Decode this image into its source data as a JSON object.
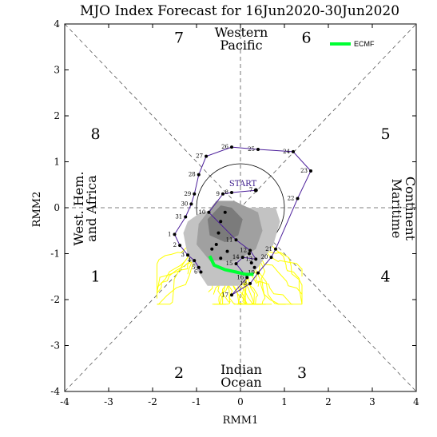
{
  "chart_data": {
    "type": "scatter",
    "title": "MJO Index Forecast for 16Jun2020-30Jun2020",
    "xlabel": "RMM1",
    "ylabel": "RMM2",
    "xlim": [
      -4,
      4
    ],
    "ylim": [
      -4,
      4
    ],
    "xticks": [
      "-4",
      "-3",
      "-2",
      "-1",
      "0",
      "1",
      "2",
      "3",
      "4"
    ],
    "yticks": [
      "-4",
      "-3",
      "-2",
      "-1",
      "0",
      "1",
      "2",
      "3",
      "4"
    ],
    "phases": [
      {
        "label": "1",
        "x": -3.3,
        "y": -1.5
      },
      {
        "label": "2",
        "x": -1.4,
        "y": -3.6
      },
      {
        "label": "3",
        "x": 1.4,
        "y": -3.6
      },
      {
        "label": "4",
        "x": 3.3,
        "y": -1.5
      },
      {
        "label": "5",
        "x": 3.3,
        "y": 1.6
      },
      {
        "label": "6",
        "x": 1.5,
        "y": 3.7
      },
      {
        "label": "7",
        "x": -1.4,
        "y": 3.7
      },
      {
        "label": "8",
        "x": -3.3,
        "y": 1.6
      }
    ],
    "regions": {
      "west_pacific": [
        "Western",
        "Pacific"
      ],
      "indian_ocean": [
        "Indian",
        "Ocean"
      ],
      "maritime": [
        "Maritime",
        "Continent"
      ],
      "west_hem": [
        "West. Hem.",
        "and Africa"
      ]
    },
    "legend": {
      "label": "ECMF",
      "color": "#00ff33",
      "position": "top-right"
    },
    "start_label": "START",
    "start_point": {
      "x": 0.35,
      "y": 0.38
    },
    "observed": {
      "color": "#4b1e9a",
      "points": [
        {
          "day": "7",
          "x": 0.35,
          "y": 0.38
        },
        {
          "day": "8",
          "x": -0.2,
          "y": 0.33
        },
        {
          "day": "9",
          "x": -0.4,
          "y": 0.3
        },
        {
          "day": "10",
          "x": -0.72,
          "y": -0.1
        },
        {
          "day": "11",
          "x": -0.1,
          "y": -0.7
        },
        {
          "day": "12",
          "x": 0.22,
          "y": -0.93
        },
        {
          "day": "13",
          "x": 0.35,
          "y": -1.12
        },
        {
          "day": "14",
          "x": 0.05,
          "y": -1.08
        },
        {
          "day": "15",
          "x": -0.1,
          "y": -1.22
        },
        {
          "day": "16",
          "x": 0.15,
          "y": -1.52
        },
        {
          "day": "17",
          "x": -0.2,
          "y": -1.9
        },
        {
          "day": "18",
          "x": 0.22,
          "y": -1.65
        },
        {
          "day": "19",
          "x": 0.4,
          "y": -1.42
        },
        {
          "day": "20",
          "x": 0.7,
          "y": -1.08
        },
        {
          "day": "21",
          "x": 0.8,
          "y": -0.9
        },
        {
          "day": "22",
          "x": 1.3,
          "y": 0.2
        },
        {
          "day": "23",
          "x": 1.6,
          "y": 0.8
        },
        {
          "day": "24",
          "x": 1.2,
          "y": 1.22
        },
        {
          "day": "25",
          "x": 0.4,
          "y": 1.27
        },
        {
          "day": "26",
          "x": -0.2,
          "y": 1.32
        },
        {
          "day": "27",
          "x": -0.78,
          "y": 1.12
        },
        {
          "day": "28",
          "x": -0.95,
          "y": 0.72
        },
        {
          "day": "29",
          "x": -1.05,
          "y": 0.3
        },
        {
          "day": "30",
          "x": -1.12,
          "y": 0.08
        },
        {
          "day": "31",
          "x": -1.25,
          "y": -0.2
        },
        {
          "day": "1",
          "x": -1.5,
          "y": -0.58
        },
        {
          "day": "2",
          "x": -1.38,
          "y": -0.82
        },
        {
          "day": "3",
          "x": -1.2,
          "y": -1.03
        },
        {
          "day": "4",
          "x": -1.05,
          "y": -1.15
        },
        {
          "day": "5",
          "x": -0.95,
          "y": -1.3
        },
        {
          "day": "6",
          "x": -0.9,
          "y": -1.4
        }
      ]
    },
    "ensemble_mean": [
      {
        "x": -0.7,
        "y": -1.05
      },
      {
        "x": -0.6,
        "y": -1.25
      },
      {
        "x": -0.35,
        "y": -1.35
      },
      {
        "x": -0.1,
        "y": -1.4
      },
      {
        "x": 0.12,
        "y": -1.45
      },
      {
        "x": 0.3,
        "y": -1.45
      }
    ],
    "forecast_days": [
      {
        "x": -0.55,
        "y": -0.8
      },
      {
        "x": -0.5,
        "y": -0.55
      },
      {
        "x": -0.45,
        "y": -0.3
      },
      {
        "x": -0.35,
        "y": -0.1
      },
      {
        "x": -0.3,
        "y": -0.95
      },
      {
        "x": -0.45,
        "y": -1.1
      },
      {
        "x": -0.65,
        "y": -0.9
      },
      {
        "x": 0.2,
        "y": -1.0
      },
      {
        "x": 0.25,
        "y": -1.2
      },
      {
        "x": 0.32,
        "y": -1.3
      }
    ],
    "plume_color": "#ffff00"
  }
}
